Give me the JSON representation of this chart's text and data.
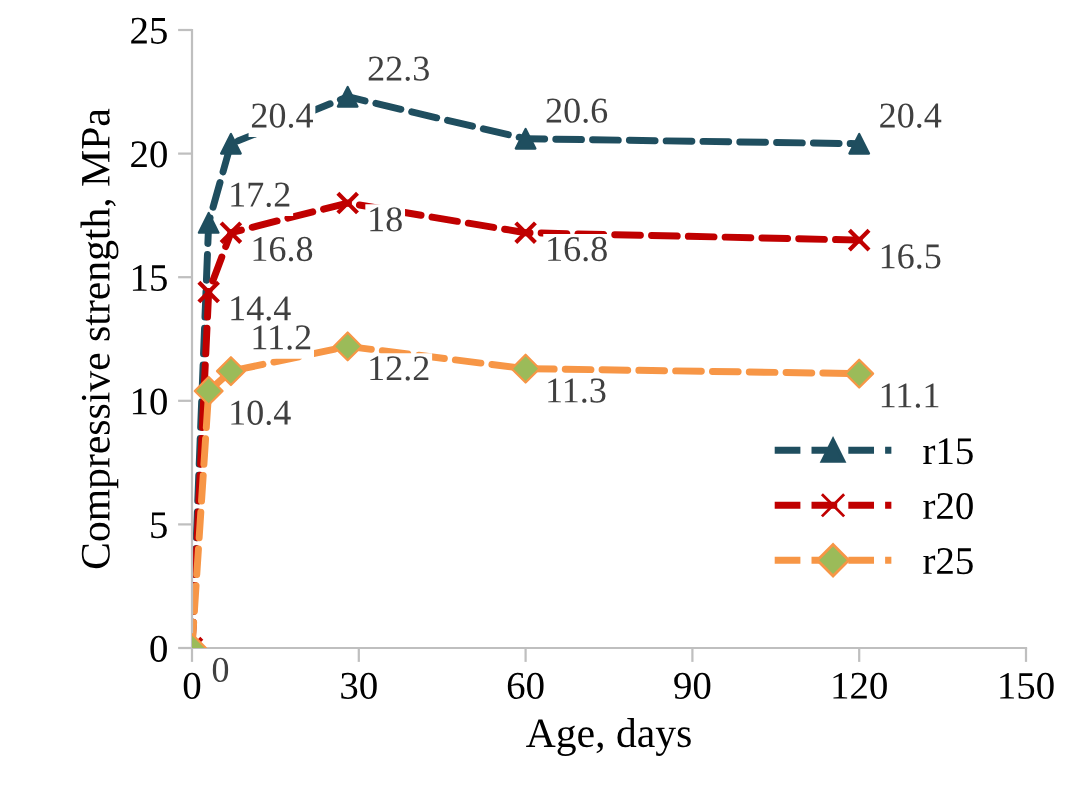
{
  "chart_data": {
    "type": "line",
    "xlabel": "Age, days",
    "ylabel": "Compressive strength, MPa",
    "xlim": [
      0,
      150
    ],
    "xticks": [
      0,
      30,
      60,
      90,
      120,
      150
    ],
    "ylim": [
      0,
      25
    ],
    "yticks": [
      0,
      5,
      10,
      15,
      20,
      25
    ],
    "x": [
      0,
      3,
      7,
      28,
      60,
      120
    ],
    "series": [
      {
        "name": "r15",
        "color": "#1f4e5f",
        "marker": "triangle",
        "values": [
          0,
          17.2,
          20.4,
          22.3,
          20.6,
          20.4
        ],
        "value_labels": [
          null,
          "17.2",
          "20.4",
          "22.3",
          "20.6",
          "20.4"
        ]
      },
      {
        "name": "r20",
        "color": "#c00000",
        "marker": "cross",
        "values": [
          0,
          14.4,
          16.8,
          18,
          16.8,
          16.5
        ],
        "value_labels": [
          null,
          "14.4",
          "16.8",
          "18",
          "16.8",
          "16.5"
        ]
      },
      {
        "name": "r25",
        "color": "#f79646",
        "marker": "diamond",
        "colors": [
          "#9bbb59",
          "#9bbb59",
          "#9bbb59",
          "#9bbb59",
          "#9bbb59",
          "#9bbb59"
        ],
        "values": [
          0,
          10.4,
          11.2,
          12.2,
          11.3,
          11.1
        ],
        "value_labels": [
          "0",
          "10.4",
          "11.2",
          "12.2",
          "11.3",
          "11.1"
        ]
      }
    ],
    "line_style": "dashed",
    "grid": false,
    "legend": "right"
  }
}
